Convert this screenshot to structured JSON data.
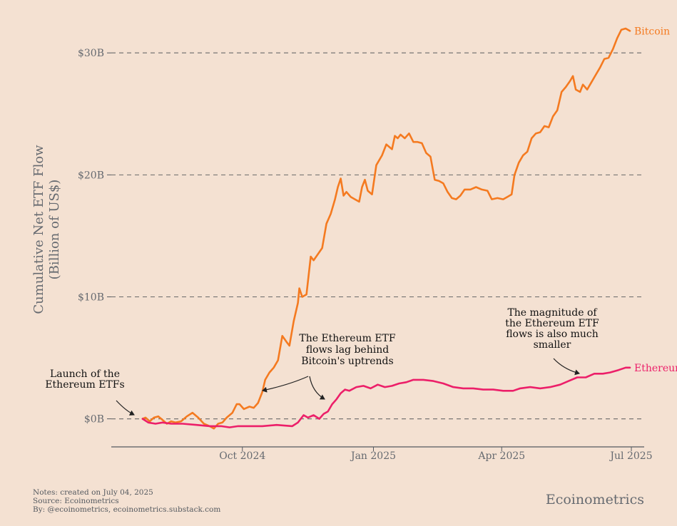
{
  "chart_data": {
    "type": "line",
    "ylabel_line1": "Cumulative Net ETF Flow",
    "ylabel_line2": "(Billion of US$)",
    "ylim": [
      -2.3,
      32
    ],
    "y_ticks": [
      0,
      10,
      20,
      30
    ],
    "y_tick_labels": [
      "$0B",
      "$10B",
      "$20B",
      "$30B"
    ],
    "x_ticks": [
      "2024-10-01",
      "2025-01-01",
      "2025-04-01",
      "2025-07-01"
    ],
    "x_tick_labels": [
      "Oct 2024",
      "Jan 2025",
      "Apr 2025",
      "Jul 2025"
    ],
    "xlim": [
      "2024-07-01",
      "2025-07-10"
    ],
    "grid": "horizontal dashed",
    "series": [
      {
        "name": "Bitcoin",
        "color": "#f47a20",
        "points": [
          [
            "2024-07-23",
            0.0
          ],
          [
            "2024-07-25",
            0.1
          ],
          [
            "2024-07-28",
            -0.2
          ],
          [
            "2024-07-31",
            0.1
          ],
          [
            "2024-08-03",
            0.2
          ],
          [
            "2024-08-06",
            -0.1
          ],
          [
            "2024-08-09",
            -0.4
          ],
          [
            "2024-08-12",
            -0.2
          ],
          [
            "2024-08-15",
            -0.3
          ],
          [
            "2024-08-19",
            -0.2
          ],
          [
            "2024-08-23",
            0.2
          ],
          [
            "2024-08-27",
            0.5
          ],
          [
            "2024-08-31",
            0.1
          ],
          [
            "2024-09-04",
            -0.4
          ],
          [
            "2024-09-08",
            -0.6
          ],
          [
            "2024-09-11",
            -0.8
          ],
          [
            "2024-09-14",
            -0.4
          ],
          [
            "2024-09-17",
            -0.3
          ],
          [
            "2024-09-20",
            0.1
          ],
          [
            "2024-09-24",
            0.5
          ],
          [
            "2024-09-27",
            1.2
          ],
          [
            "2024-09-29",
            1.2
          ],
          [
            "2024-10-02",
            0.8
          ],
          [
            "2024-10-06",
            1.0
          ],
          [
            "2024-10-09",
            0.9
          ],
          [
            "2024-10-12",
            1.3
          ],
          [
            "2024-10-15",
            2.2
          ],
          [
            "2024-10-17",
            3.2
          ],
          [
            "2024-10-20",
            3.8
          ],
          [
            "2024-10-23",
            4.2
          ],
          [
            "2024-10-26",
            4.8
          ],
          [
            "2024-10-29",
            6.8
          ],
          [
            "2024-11-01",
            6.3
          ],
          [
            "2024-11-03",
            6.0
          ],
          [
            "2024-11-06",
            8.0
          ],
          [
            "2024-11-09",
            9.5
          ],
          [
            "2024-11-10",
            10.7
          ],
          [
            "2024-11-12",
            10.0
          ],
          [
            "2024-11-15",
            10.2
          ],
          [
            "2024-11-18",
            13.3
          ],
          [
            "2024-11-20",
            13.0
          ],
          [
            "2024-11-23",
            13.5
          ],
          [
            "2024-11-26",
            14.0
          ],
          [
            "2024-11-29",
            16.0
          ],
          [
            "2024-12-02",
            16.8
          ],
          [
            "2024-12-05",
            18.0
          ],
          [
            "2024-12-07",
            19.0
          ],
          [
            "2024-12-09",
            19.7
          ],
          [
            "2024-12-11",
            18.3
          ],
          [
            "2024-12-13",
            18.6
          ],
          [
            "2024-12-16",
            18.2
          ],
          [
            "2024-12-19",
            18.0
          ],
          [
            "2024-12-22",
            17.8
          ],
          [
            "2024-12-24",
            19.0
          ],
          [
            "2024-12-26",
            19.6
          ],
          [
            "2024-12-28",
            18.7
          ],
          [
            "2024-12-31",
            18.4
          ],
          [
            "2025-01-03",
            20.8
          ],
          [
            "2025-01-07",
            21.6
          ],
          [
            "2025-01-10",
            22.5
          ],
          [
            "2025-01-14",
            22.1
          ],
          [
            "2025-01-16",
            23.2
          ],
          [
            "2025-01-18",
            23.0
          ],
          [
            "2025-01-20",
            23.3
          ],
          [
            "2025-01-23",
            23.0
          ],
          [
            "2025-01-26",
            23.4
          ],
          [
            "2025-01-29",
            22.7
          ],
          [
            "2025-02-01",
            22.7
          ],
          [
            "2025-02-04",
            22.6
          ],
          [
            "2025-02-07",
            21.8
          ],
          [
            "2025-02-10",
            21.5
          ],
          [
            "2025-02-13",
            19.6
          ],
          [
            "2025-02-16",
            19.5
          ],
          [
            "2025-02-19",
            19.3
          ],
          [
            "2025-02-22",
            18.6
          ],
          [
            "2025-02-25",
            18.1
          ],
          [
            "2025-02-28",
            18.0
          ],
          [
            "2025-03-03",
            18.3
          ],
          [
            "2025-03-06",
            18.8
          ],
          [
            "2025-03-10",
            18.8
          ],
          [
            "2025-03-14",
            19.0
          ],
          [
            "2025-03-18",
            18.8
          ],
          [
            "2025-03-22",
            18.7
          ],
          [
            "2025-03-25",
            18.0
          ],
          [
            "2025-03-29",
            18.1
          ],
          [
            "2025-04-02",
            18.0
          ],
          [
            "2025-04-05",
            18.2
          ],
          [
            "2025-04-08",
            18.4
          ],
          [
            "2025-04-10",
            20.0
          ],
          [
            "2025-04-13",
            21.0
          ],
          [
            "2025-04-16",
            21.6
          ],
          [
            "2025-04-19",
            21.9
          ],
          [
            "2025-04-22",
            23.0
          ],
          [
            "2025-04-25",
            23.4
          ],
          [
            "2025-04-28",
            23.5
          ],
          [
            "2025-05-01",
            24.0
          ],
          [
            "2025-05-04",
            23.9
          ],
          [
            "2025-05-07",
            24.8
          ],
          [
            "2025-05-10",
            25.3
          ],
          [
            "2025-05-13",
            26.8
          ],
          [
            "2025-05-16",
            27.2
          ],
          [
            "2025-05-19",
            27.7
          ],
          [
            "2025-05-21",
            28.1
          ],
          [
            "2025-05-23",
            27.0
          ],
          [
            "2025-05-26",
            26.8
          ],
          [
            "2025-05-28",
            27.4
          ],
          [
            "2025-05-31",
            27.0
          ],
          [
            "2025-06-03",
            27.6
          ],
          [
            "2025-06-06",
            28.2
          ],
          [
            "2025-06-09",
            28.8
          ],
          [
            "2025-06-12",
            29.5
          ],
          [
            "2025-06-15",
            29.6
          ],
          [
            "2025-06-18",
            30.3
          ],
          [
            "2025-06-21",
            31.2
          ],
          [
            "2025-06-24",
            31.9
          ],
          [
            "2025-06-27",
            32.0
          ],
          [
            "2025-06-30",
            31.8
          ]
        ]
      },
      {
        "name": "Ethereum",
        "color": "#ec1f69",
        "points": [
          [
            "2024-07-23",
            0.0
          ],
          [
            "2024-07-27",
            -0.3
          ],
          [
            "2024-08-01",
            -0.4
          ],
          [
            "2024-08-06",
            -0.3
          ],
          [
            "2024-08-12",
            -0.4
          ],
          [
            "2024-08-20",
            -0.4
          ],
          [
            "2024-08-30",
            -0.5
          ],
          [
            "2024-09-08",
            -0.6
          ],
          [
            "2024-09-16",
            -0.6
          ],
          [
            "2024-09-22",
            -0.7
          ],
          [
            "2024-09-28",
            -0.6
          ],
          [
            "2024-10-06",
            -0.6
          ],
          [
            "2024-10-15",
            -0.6
          ],
          [
            "2024-10-25",
            -0.5
          ],
          [
            "2024-11-05",
            -0.6
          ],
          [
            "2024-11-09",
            -0.3
          ],
          [
            "2024-11-13",
            0.3
          ],
          [
            "2024-11-16",
            0.1
          ],
          [
            "2024-11-20",
            0.3
          ],
          [
            "2024-11-24",
            0.0
          ],
          [
            "2024-11-27",
            0.4
          ],
          [
            "2024-11-30",
            0.6
          ],
          [
            "2024-12-03",
            1.2
          ],
          [
            "2024-12-06",
            1.6
          ],
          [
            "2024-12-09",
            2.1
          ],
          [
            "2024-12-12",
            2.4
          ],
          [
            "2024-12-15",
            2.3
          ],
          [
            "2024-12-20",
            2.6
          ],
          [
            "2024-12-25",
            2.7
          ],
          [
            "2024-12-30",
            2.5
          ],
          [
            "2025-01-04",
            2.8
          ],
          [
            "2025-01-09",
            2.6
          ],
          [
            "2025-01-14",
            2.7
          ],
          [
            "2025-01-19",
            2.9
          ],
          [
            "2025-01-24",
            3.0
          ],
          [
            "2025-01-29",
            3.2
          ],
          [
            "2025-02-05",
            3.2
          ],
          [
            "2025-02-12",
            3.1
          ],
          [
            "2025-02-19",
            2.9
          ],
          [
            "2025-02-26",
            2.6
          ],
          [
            "2025-03-05",
            2.5
          ],
          [
            "2025-03-12",
            2.5
          ],
          [
            "2025-03-19",
            2.4
          ],
          [
            "2025-03-26",
            2.4
          ],
          [
            "2025-04-02",
            2.3
          ],
          [
            "2025-04-09",
            2.3
          ],
          [
            "2025-04-14",
            2.5
          ],
          [
            "2025-04-21",
            2.6
          ],
          [
            "2025-04-28",
            2.5
          ],
          [
            "2025-05-05",
            2.6
          ],
          [
            "2025-05-12",
            2.8
          ],
          [
            "2025-05-18",
            3.1
          ],
          [
            "2025-05-24",
            3.4
          ],
          [
            "2025-05-30",
            3.4
          ],
          [
            "2025-06-05",
            3.7
          ],
          [
            "2025-06-11",
            3.7
          ],
          [
            "2025-06-16",
            3.8
          ],
          [
            "2025-06-22",
            4.0
          ],
          [
            "2025-06-27",
            4.2
          ],
          [
            "2025-06-30",
            4.2
          ]
        ]
      }
    ],
    "annotations": [
      {
        "key": "launch",
        "lines": [
          "Launch of the",
          "Ethereum ETFs"
        ]
      },
      {
        "key": "lag",
        "lines": [
          "The Ethereum ETF",
          "flows lag behind",
          "Bitcoin's uptrends"
        ]
      },
      {
        "key": "magnitude",
        "lines": [
          "The magnitude of",
          "the Ethereum ETF",
          "flows is also much",
          "smaller"
        ]
      }
    ]
  },
  "footer": {
    "notes": "Notes: created on July 04, 2025",
    "source": "Source: Ecoinometrics",
    "by": "By: @ecoinometrics, ecoinometrics.substack.com",
    "brand": "Ecoinometrics"
  }
}
